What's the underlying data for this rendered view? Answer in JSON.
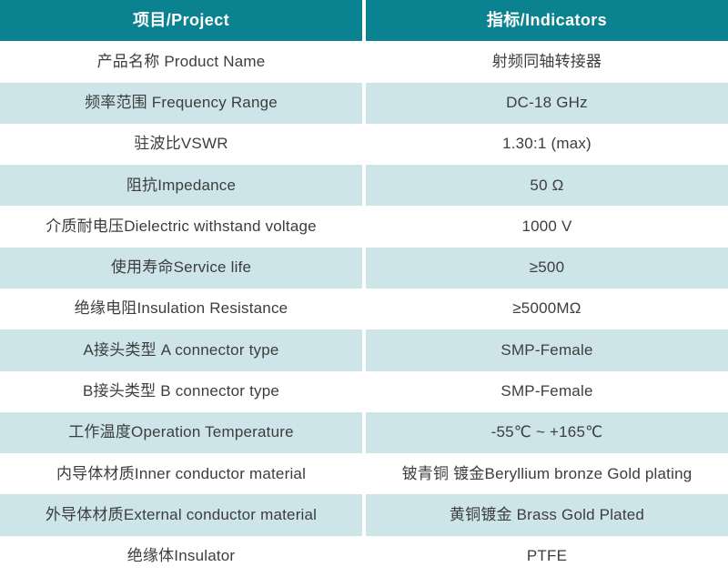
{
  "colors": {
    "header_bg": "#0b8290",
    "header_text": "#ffffff",
    "row_alt_bg": "#cde5e9",
    "row_bg": "#ffffff",
    "body_text": "#3d3d3d",
    "divider": "#ffffff"
  },
  "table": {
    "header": {
      "project": "项目/Project",
      "indicators": "指标/Indicators"
    },
    "rows": [
      {
        "project": "产品名称 Product Name",
        "indicator": "射频同轴转接器"
      },
      {
        "project": "频率范围 Frequency Range",
        "indicator": "DC-18 GHz"
      },
      {
        "project": "驻波比VSWR",
        "indicator": "1.30:1 (max)"
      },
      {
        "project": "阻抗Impedance",
        "indicator": "50 Ω"
      },
      {
        "project": "介质耐电压Dielectric withstand voltage",
        "indicator": "1000 V"
      },
      {
        "project": "使用寿命Service life",
        "indicator": "≥500"
      },
      {
        "project": "绝缘电阻Insulation Resistance",
        "indicator": "≥5000MΩ"
      },
      {
        "project": "A接头类型 A connector type",
        "indicator": "SMP-Female"
      },
      {
        "project": "B接头类型 B connector type",
        "indicator": "SMP-Female"
      },
      {
        "project": "工作温度Operation Temperature",
        "indicator": "-55℃ ~ +165℃"
      },
      {
        "project": "内导体材质Inner conductor material",
        "indicator": "铍青铜 镀金Beryllium bronze Gold plating"
      },
      {
        "project": "外导体材质External conductor material",
        "indicator": "黄铜镀金 Brass Gold Plated"
      },
      {
        "project": "绝缘体Insulator",
        "indicator": "PTFE"
      }
    ]
  }
}
